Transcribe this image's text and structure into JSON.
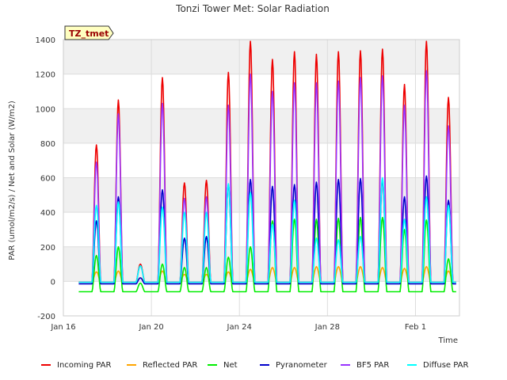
{
  "chart_data": {
    "type": "line",
    "title": "Tonzi Tower Met: Solar Radiation",
    "xlabel": "Time",
    "ylabel": "PAR (umol/m2/s) / Net and Solar (W/m2)",
    "site_label": "TZ_tmet",
    "xlim": [
      "2022-01-16",
      "2022-02-03"
    ],
    "ylim": [
      -200,
      1400
    ],
    "x_ticks": [
      {
        "date": "2022-01-16",
        "label": "Jan 16"
      },
      {
        "date": "2022-01-20",
        "label": "Jan 20"
      },
      {
        "date": "2022-01-24",
        "label": "Jan 24"
      },
      {
        "date": "2022-01-28",
        "label": "Jan 28"
      },
      {
        "date": "2022-02-01",
        "label": "Feb 1"
      }
    ],
    "y_ticks": [
      -200,
      0,
      200,
      400,
      600,
      800,
      1000,
      1200,
      1400
    ],
    "grid": true,
    "legend_position": "bottom",
    "days": [
      "2022-01-17",
      "2022-01-18",
      "2022-01-19",
      "2022-01-20",
      "2022-01-21",
      "2022-01-22",
      "2022-01-23",
      "2022-01-24",
      "2022-01-25",
      "2022-01-26",
      "2022-01-27",
      "2022-01-28",
      "2022-01-29",
      "2022-01-30",
      "2022-01-31",
      "2022-02-01",
      "2022-02-02"
    ],
    "series": [
      {
        "name": "Incoming PAR",
        "color": "#ee0000",
        "night": -5,
        "daily_peak": [
          790,
          1050,
          100,
          1180,
          570,
          585,
          1210,
          1390,
          1285,
          1330,
          1315,
          1330,
          1335,
          1345,
          1140,
          1390,
          1065
        ]
      },
      {
        "name": "Reflected PAR",
        "color": "#ffa500",
        "night": -5,
        "daily_peak": [
          55,
          60,
          20,
          60,
          40,
          40,
          55,
          70,
          80,
          80,
          85,
          85,
          85,
          80,
          75,
          85,
          60
        ]
      },
      {
        "name": "Net",
        "color": "#00ee00",
        "night": -60,
        "daily_peak": [
          150,
          200,
          -10,
          100,
          80,
          80,
          140,
          200,
          350,
          360,
          360,
          365,
          370,
          370,
          300,
          355,
          130
        ]
      },
      {
        "name": "Pyranometer",
        "color": "#0000cc",
        "night": -15,
        "daily_peak": [
          350,
          490,
          20,
          530,
          250,
          260,
          560,
          590,
          550,
          560,
          575,
          590,
          595,
          585,
          490,
          610,
          470
        ]
      },
      {
        "name": "BF5 PAR",
        "color": "#9933ff",
        "night": -5,
        "daily_peak": [
          690,
          970,
          90,
          1030,
          480,
          490,
          1020,
          1200,
          1100,
          1150,
          1150,
          1160,
          1180,
          1190,
          1020,
          1220,
          900
        ]
      },
      {
        "name": "Diffuse PAR",
        "color": "#00ffff",
        "night": -5,
        "daily_peak": [
          440,
          460,
          90,
          430,
          400,
          400,
          565,
          515,
          330,
          470,
          250,
          240,
          260,
          600,
          360,
          490,
          440
        ]
      }
    ]
  }
}
